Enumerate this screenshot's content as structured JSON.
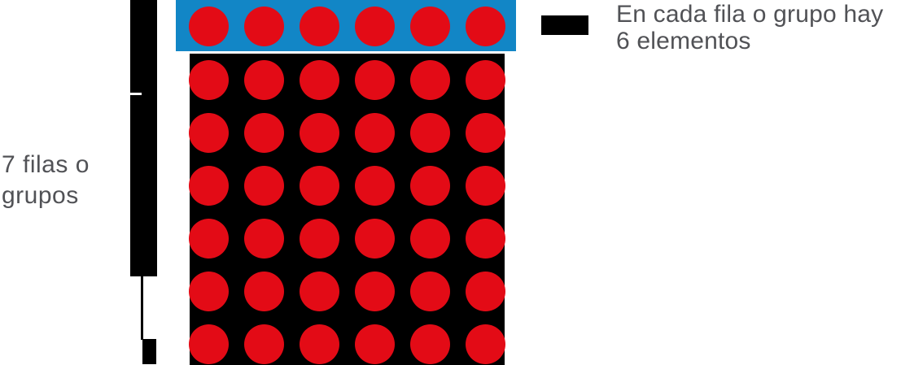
{
  "labels": {
    "rows_label": {
      "line1": "7 filas o",
      "line2": "grupos"
    },
    "legend": {
      "line1": "En cada fila o grupo hay",
      "line2": "6 elementos"
    }
  },
  "array_model": {
    "rows_total": 7,
    "cols_per_row": 6,
    "highlighted_row_index": 0,
    "dot_color": "#e30b16",
    "highlight_band_color": "#1286c6",
    "grid_background_color": "#000000",
    "bracket_color": "#000000",
    "swatch_color": "#000000",
    "text_color": "#515256",
    "page_background": "#ffffff"
  }
}
